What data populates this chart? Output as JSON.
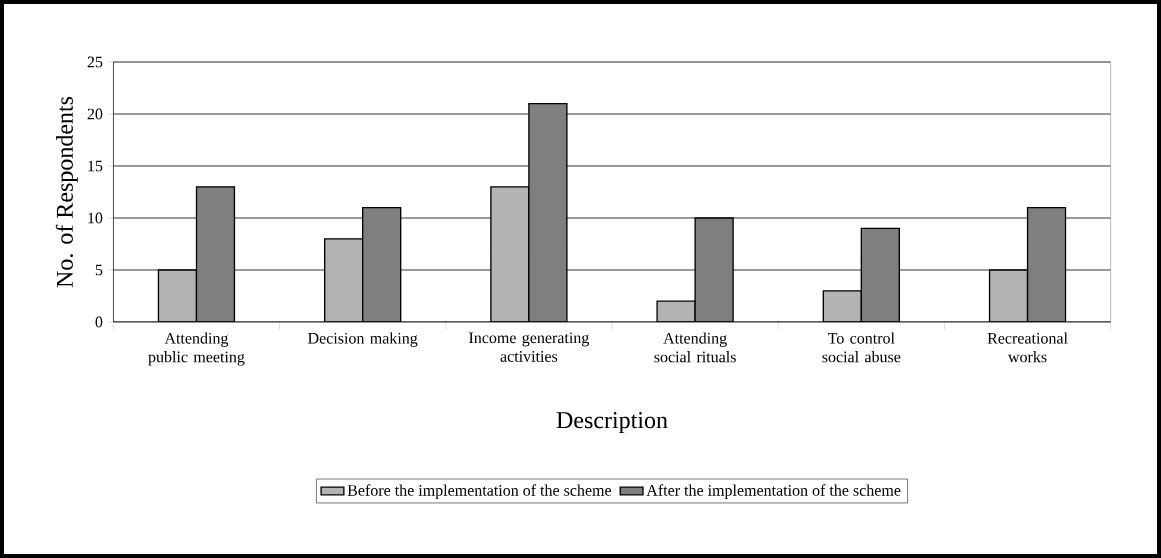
{
  "chart_data": {
    "type": "bar",
    "xlabel": "Description",
    "ylabel": "No. of Respondents",
    "categories": [
      "Attending public meeting",
      "Decision making",
      "Income generating activities",
      "Attending social rituals",
      "To control social abuse",
      "Recreational works"
    ],
    "series": [
      {
        "name": "Before the implementation of the scheme",
        "color": "#b3b3b3",
        "values": [
          5,
          8,
          13,
          2,
          3,
          5
        ]
      },
      {
        "name": "After the implementation of the scheme",
        "color": "#7f7f7f",
        "values": [
          13,
          11,
          21,
          10,
          9,
          11
        ]
      }
    ],
    "ylim": [
      0,
      25
    ],
    "yticks": [
      0,
      5,
      10,
      15,
      20,
      25
    ],
    "grid": "y",
    "legend": "bottom"
  }
}
